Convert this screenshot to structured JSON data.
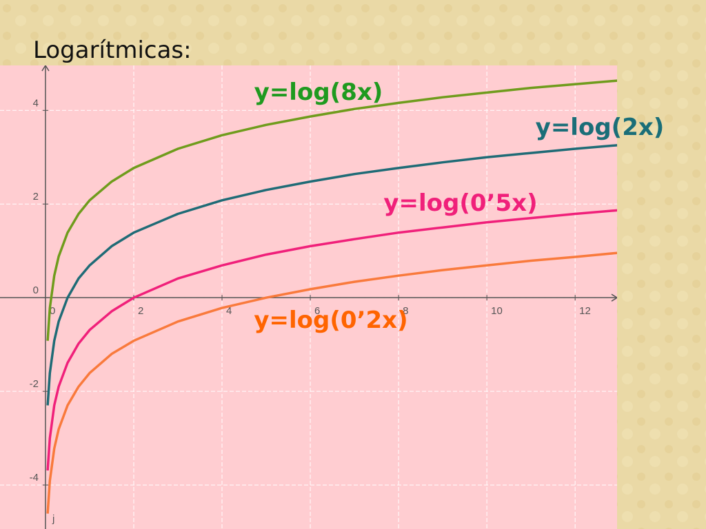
{
  "title": "Logarítmicas:",
  "chart_data": {
    "type": "line",
    "x": [
      0.05,
      0.1,
      0.2,
      0.3,
      0.5,
      0.75,
      1,
      1.5,
      2,
      3,
      4,
      5,
      6,
      7,
      8,
      9,
      10,
      11,
      12,
      13
    ],
    "series": [
      {
        "name": "y=log(8x)",
        "color": "#6f9c1c",
        "label_color": "#1f9a1f",
        "values": [
          -0.92,
          -0.22,
          0.47,
          0.88,
          1.39,
          1.79,
          2.08,
          2.48,
          2.77,
          3.18,
          3.47,
          3.69,
          3.87,
          4.03,
          4.16,
          4.28,
          4.38,
          4.48,
          4.56,
          4.64
        ]
      },
      {
        "name": "y=log(2x)",
        "color": "#1f6b76",
        "label_color": "#1a6e78",
        "values": [
          -2.3,
          -1.61,
          -0.92,
          -0.51,
          0,
          0.41,
          0.69,
          1.1,
          1.39,
          1.79,
          2.08,
          2.3,
          2.48,
          2.64,
          2.77,
          2.89,
          3.0,
          3.09,
          3.18,
          3.26
        ]
      },
      {
        "name": "y=log(0’5x)",
        "color": "#f0207a",
        "label_color": "#f0207a",
        "values": [
          -3.69,
          -3.0,
          -2.3,
          -1.9,
          -1.39,
          -0.98,
          -0.69,
          -0.29,
          0,
          0.41,
          0.69,
          0.92,
          1.1,
          1.25,
          1.39,
          1.5,
          1.61,
          1.7,
          1.79,
          1.87
        ]
      },
      {
        "name": "y=log(0’2x)",
        "color": "#f97a3c",
        "label_color": "#ff6400",
        "values": [
          -4.61,
          -3.91,
          -3.22,
          -2.81,
          -2.3,
          -1.9,
          -1.61,
          -1.2,
          -0.92,
          -0.51,
          -0.22,
          0,
          0.18,
          0.34,
          0.47,
          0.59,
          0.69,
          0.79,
          0.87,
          0.96
        ]
      }
    ],
    "xlim": [
      -1.03,
      12.95
    ],
    "ylim": [
      -4.94,
      4.96
    ],
    "xticks": [
      0,
      2,
      4,
      6,
      8,
      10,
      12
    ],
    "yticks": [
      -4,
      -2,
      0,
      2,
      4
    ],
    "grid": true,
    "axis_name": "j"
  }
}
